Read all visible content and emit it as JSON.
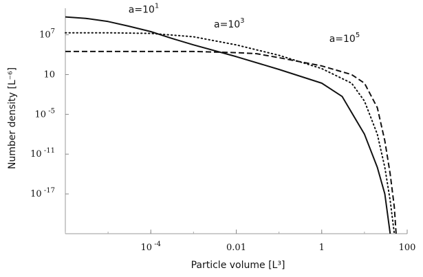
{
  "chart_data": {
    "type": "line",
    "xscale": "log",
    "yscale": "log",
    "xlabel": "Particle volume [L³]",
    "ylabel": "Number density [L⁻⁶]",
    "xlim": [
      1e-06,
      100
    ],
    "ylim": [
      1e-23,
      100000000000.0
    ],
    "xticks": [
      {
        "value": 0.0001,
        "base": "10",
        "exp": " -4",
        "sup": true
      },
      {
        "value": 0.01,
        "base": "0.01",
        "exp": "",
        "sup": false
      },
      {
        "value": 1,
        "base": "1",
        "exp": "",
        "sup": false
      },
      {
        "value": 100,
        "base": "100",
        "exp": "",
        "sup": false
      }
    ],
    "yticks": [
      {
        "value": 10000000.0,
        "base": "10",
        "exp": "7",
        "sup": true
      },
      {
        "value": 10,
        "base": "10",
        "exp": "",
        "sup": false
      },
      {
        "value": 1e-05,
        "base": "10",
        "exp": " -5",
        "sup": true
      },
      {
        "value": 1e-11,
        "base": "10",
        "exp": " -11",
        "sup": true
      },
      {
        "value": 1e-17,
        "base": "10",
        "exp": " -17",
        "sup": true
      }
    ],
    "series": [
      {
        "name": "a=10¹",
        "label_base": "a=10",
        "label_exp": "1",
        "style": "solid",
        "x": [
          1e-06,
          3e-06,
          1e-05,
          3e-05,
          0.0001,
          0.0003,
          0.001,
          0.01,
          0.1,
          1,
          3,
          10,
          20,
          30,
          40
        ],
        "y": [
          5000000000.0,
          3000000000.0,
          1000000000.0,
          200000000.0,
          30000000.0,
          3000000.0,
          300000.0,
          5000.0,
          60,
          0.5,
          0.005,
          1e-08,
          1e-13,
          1e-17,
          1e-23
        ]
      },
      {
        "name": "a=10³",
        "label_base": "a=10",
        "label_exp": "3",
        "style": "dotted",
        "x": [
          1e-06,
          1e-05,
          0.0001,
          0.001,
          0.01,
          0.1,
          1,
          5,
          10,
          20,
          30,
          40,
          50
        ],
        "y": [
          20000000.0,
          20000000.0,
          16000000.0,
          5000000.0,
          300000.0,
          8000.0,
          80,
          0.5,
          0.001,
          1e-08,
          1e-13,
          1e-18,
          1e-23
        ]
      },
      {
        "name": "a=10⁵",
        "label_base": "a=10",
        "label_exp": "5",
        "style": "dashed",
        "x": [
          1e-06,
          1e-05,
          0.0001,
          0.001,
          0.01,
          0.03,
          0.1,
          1,
          5,
          10,
          20,
          30,
          40,
          50,
          55
        ],
        "y": [
          30000.0,
          30000.0,
          30000.0,
          30000.0,
          20000.0,
          14000.0,
          3500.0,
          200,
          10,
          0.5,
          0.0001,
          1e-09,
          1e-14,
          1e-19,
          1e-23
        ]
      }
    ]
  }
}
